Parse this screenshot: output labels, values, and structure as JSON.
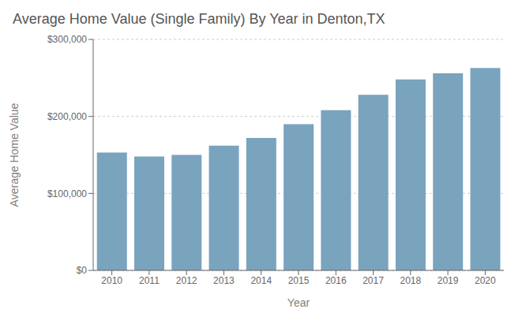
{
  "chart_data": {
    "type": "bar",
    "title": "Average Home Value (Single Family) By Year in Denton,TX",
    "xlabel": "Year",
    "ylabel": "Average Home Value",
    "categories": [
      "2010",
      "2011",
      "2012",
      "2013",
      "2014",
      "2015",
      "2016",
      "2017",
      "2018",
      "2019",
      "2020"
    ],
    "values": [
      153000,
      148000,
      150000,
      162000,
      172000,
      190000,
      208000,
      228000,
      248000,
      256000,
      263000
    ],
    "color": "#7aa3be",
    "ylim": [
      0,
      300000
    ],
    "yticks": [
      {
        "value": 0,
        "label": "$0"
      },
      {
        "value": 100000,
        "label": "$100,000"
      },
      {
        "value": 200000,
        "label": "$200,000"
      },
      {
        "value": 300000,
        "label": "$300,000"
      }
    ],
    "grid": true
  }
}
